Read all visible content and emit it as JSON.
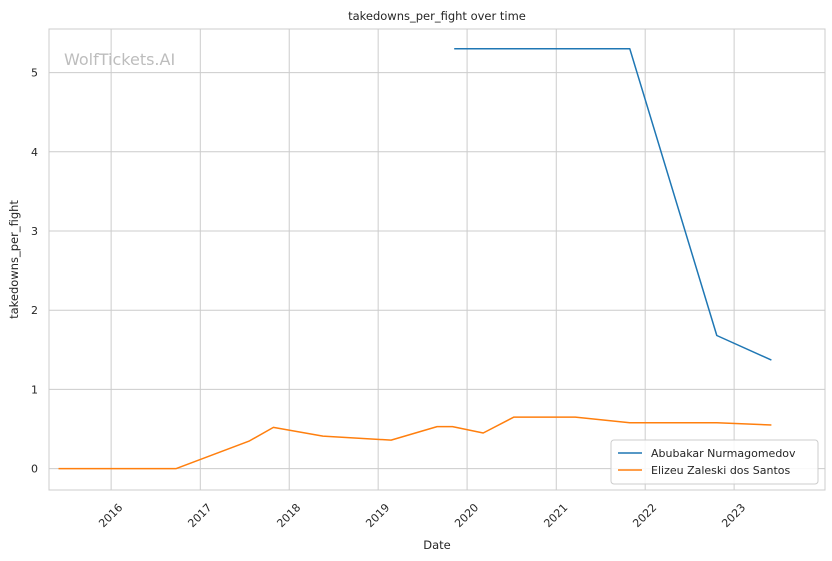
{
  "chart_data": {
    "type": "line",
    "title": "takedowns_per_fight over time",
    "xlabel": "Date",
    "ylabel": "takedowns_per_fight",
    "watermark": "WolfTickets.AI",
    "xlim": [
      "2015-04-21",
      "2024-01-09"
    ],
    "ylim": [
      -0.27,
      5.55
    ],
    "x_ticks": [
      "2016-01-01",
      "2017-01-01",
      "2018-01-01",
      "2019-01-01",
      "2020-01-01",
      "2021-01-01",
      "2022-01-01",
      "2023-01-01"
    ],
    "x_tick_labels": [
      "2016",
      "2017",
      "2018",
      "2019",
      "2020",
      "2021",
      "2022",
      "2023"
    ],
    "y_ticks": [
      0,
      1,
      2,
      3,
      4,
      5
    ],
    "y_tick_labels": [
      "0",
      "1",
      "2",
      "3",
      "4",
      "5"
    ],
    "grid": true,
    "legend_position": "lower-right",
    "series": [
      {
        "name": "Abubakar Nurmagomedov",
        "color": "#1f77b4",
        "points": [
          {
            "x": "2019-11-09",
            "y": 5.3
          },
          {
            "x": "2021-10-30",
            "y": 5.3
          },
          {
            "x": "2022-10-22",
            "y": 1.68
          },
          {
            "x": "2023-06-03",
            "y": 1.37
          }
        ]
      },
      {
        "name": "Elizeu Zaleski dos Santos",
        "color": "#ff7f0e",
        "points": [
          {
            "x": "2015-05-30",
            "y": 0.0
          },
          {
            "x": "2016-09-24",
            "y": 0.0
          },
          {
            "x": "2017-07-22",
            "y": 0.35
          },
          {
            "x": "2017-10-28",
            "y": 0.52
          },
          {
            "x": "2018-05-19",
            "y": 0.41
          },
          {
            "x": "2019-02-23",
            "y": 0.36
          },
          {
            "x": "2019-08-31",
            "y": 0.53
          },
          {
            "x": "2019-11-02",
            "y": 0.53
          },
          {
            "x": "2020-03-07",
            "y": 0.45
          },
          {
            "x": "2020-07-11",
            "y": 0.65
          },
          {
            "x": "2021-03-20",
            "y": 0.65
          },
          {
            "x": "2021-10-30",
            "y": 0.58
          },
          {
            "x": "2022-10-22",
            "y": 0.58
          },
          {
            "x": "2023-06-03",
            "y": 0.55
          }
        ]
      }
    ]
  }
}
